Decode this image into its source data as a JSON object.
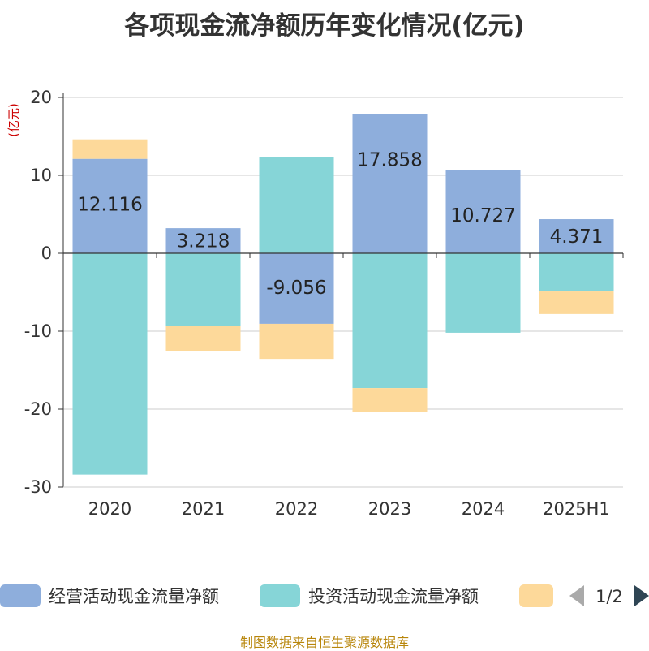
{
  "title": "各项现金流净额历年变化情况(亿元)",
  "footer": "制图数据来自恒生聚源数据库",
  "pager": "1/2",
  "chart_data": {
    "type": "bar",
    "stacked": true,
    "title": "各项现金流净额历年变化情况(亿元)",
    "ylabel": "(亿元)",
    "ylim": [
      -30,
      20
    ],
    "yticks": [
      20,
      10,
      0,
      -10,
      -20,
      -30
    ],
    "grid": true,
    "legend_position": "bottom",
    "categories": [
      "2020",
      "2021",
      "2022",
      "2023",
      "2024",
      "2025H1"
    ],
    "series": [
      {
        "name": "经营活动现金流量净额",
        "color": "#8eaedc",
        "values": [
          12.116,
          3.218,
          -9.056,
          17.858,
          10.727,
          4.371
        ],
        "labels": [
          "12.116",
          "3.218",
          "-9.056",
          "17.858",
          "10.727",
          "4.371"
        ]
      },
      {
        "name": "投资活动现金流量净额",
        "color": "#86d5d7",
        "values": [
          -28.4,
          -9.3,
          12.3,
          -17.3,
          -10.2,
          -4.9
        ]
      },
      {
        "name": "",
        "color": "#fdd99a",
        "values": [
          2.5,
          -3.3,
          -4.5,
          -3.1,
          0,
          -2.9
        ]
      }
    ]
  }
}
